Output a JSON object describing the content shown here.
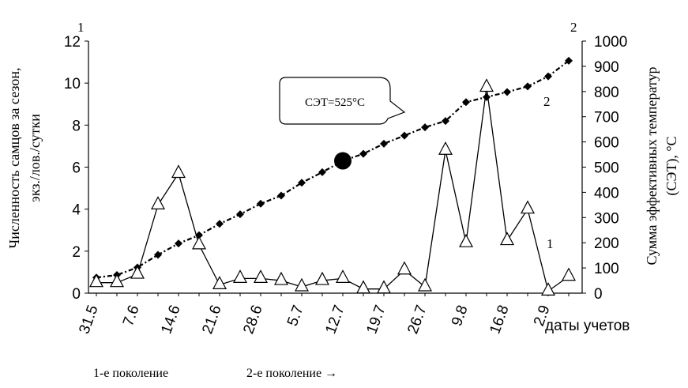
{
  "chart_data": {
    "type": "line",
    "left_axis": {
      "label_line1": "Численность самцов за сезон,",
      "label_line2": "экз./лов./сутки",
      "ylim": [
        0,
        12
      ],
      "ticks": [
        "0",
        "2",
        "4",
        "6",
        "8",
        "10",
        "12"
      ],
      "marker": "1"
    },
    "right_axis": {
      "label_line1": "Сумма эффективных температур",
      "label_line2": "(СЭТ), °С",
      "ylim": [
        0,
        1000
      ],
      "ticks": [
        "0",
        "100",
        "200",
        "300",
        "400",
        "500",
        "600",
        "700",
        "800",
        "900",
        "1000"
      ],
      "marker": "2"
    },
    "x_axis": {
      "label": "даты учетов",
      "tick_labels": [
        "31.5",
        "7.6",
        "14.6",
        "21.6",
        "28.6",
        "5.7",
        "12.7",
        "19.7",
        "26.7",
        "9.8",
        "16.8",
        "2.9"
      ]
    },
    "series": [
      {
        "label": "1",
        "axis": "left",
        "marker": "open-triangle",
        "values": [
          0.5,
          0.5,
          0.9,
          4.2,
          5.7,
          2.3,
          0.4,
          0.7,
          0.7,
          0.6,
          0.3,
          0.6,
          0.7,
          0.2,
          0.2,
          1.1,
          0.3,
          6.8,
          2.4,
          9.8,
          2.5,
          4.0,
          0.1,
          0.8
        ]
      },
      {
        "label": "2",
        "axis": "right",
        "marker": "filled-diamond",
        "values": [
          62,
          72,
          102,
          152,
          197,
          230,
          275,
          313,
          355,
          387,
          438,
          480,
          525,
          553,
          593,
          625,
          658,
          683,
          758,
          778,
          798,
          820,
          860,
          922
        ]
      }
    ],
    "highlight": {
      "index": 12,
      "value": 525
    },
    "callout": "СЭТ=525°С",
    "footnotes": [
      "1-е поколение",
      "2-е поколение →"
    ]
  }
}
